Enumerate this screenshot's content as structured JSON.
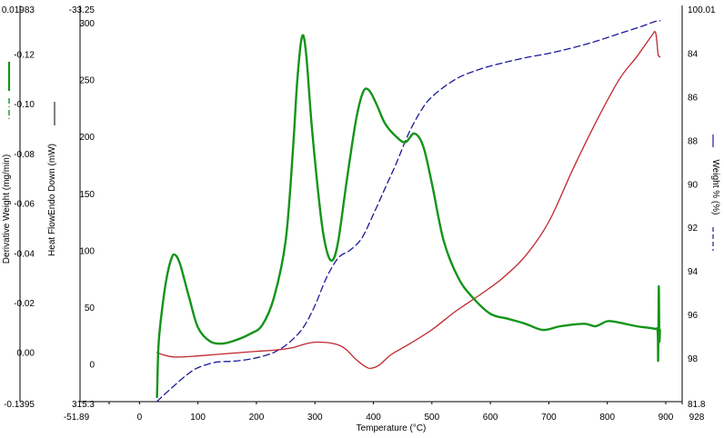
{
  "chart_data": {
    "type": "line",
    "xlabel": "Temperature (°C)",
    "xlim": [
      -51.89,
      928
    ],
    "x_ticks": [
      "-51.89",
      "0",
      "100",
      "200",
      "300",
      "400",
      "500",
      "600",
      "700",
      "800",
      "900",
      "928"
    ],
    "axes": {
      "derivative": {
        "label": "Derivative Weight (mg/min)",
        "ylim": [
          -0.1395,
          0.01983
        ],
        "ticks": [
          "0.01983",
          "0.00",
          "-0.02",
          "-0.04",
          "-0.06",
          "-0.08",
          "-0.10",
          "-0.12",
          "-0.1395"
        ],
        "legend_style": "solid green line with dash-dot marker"
      },
      "heatflow": {
        "label": "Heat FlowEndo Down (mW)",
        "ylim": [
          315.3,
          -33.25
        ],
        "ticks": [
          "-33.25",
          "0",
          "50",
          "100",
          "150",
          "200",
          "250",
          "300",
          "315.3"
        ],
        "legend_style": "solid line"
      },
      "weight": {
        "label": "Weight % (%)",
        "ylim": [
          81.8,
          100.01
        ],
        "ticks": [
          "100.01",
          "98",
          "96",
          "94",
          "92",
          "90",
          "88",
          "86",
          "84",
          "81.8"
        ],
        "legend_style": "dashed blue line"
      }
    },
    "series": [
      {
        "axis": "weight",
        "color": "#1a1a99",
        "style": "dashed",
        "points": [
          [
            30,
            100.0
          ],
          [
            50,
            99.5
          ],
          [
            80,
            98.8
          ],
          [
            100,
            98.45
          ],
          [
            130,
            98.2
          ],
          [
            160,
            98.15
          ],
          [
            190,
            98.05
          ],
          [
            220,
            97.85
          ],
          [
            240,
            97.6
          ],
          [
            260,
            97.2
          ],
          [
            280,
            96.6
          ],
          [
            300,
            95.6
          ],
          [
            320,
            94.3
          ],
          [
            340,
            93.4
          ],
          [
            360,
            93.05
          ],
          [
            380,
            92.5
          ],
          [
            400,
            91.4
          ],
          [
            420,
            90.2
          ],
          [
            440,
            89.0
          ],
          [
            460,
            87.7
          ],
          [
            480,
            86.7
          ],
          [
            500,
            86.0
          ],
          [
            540,
            85.2
          ],
          [
            580,
            84.75
          ],
          [
            620,
            84.45
          ],
          [
            660,
            84.2
          ],
          [
            700,
            84.0
          ],
          [
            740,
            83.75
          ],
          [
            780,
            83.45
          ],
          [
            820,
            83.1
          ],
          [
            860,
            82.75
          ],
          [
            880,
            82.55
          ],
          [
            890,
            82.5
          ]
        ]
      },
      {
        "axis": "heatflow",
        "color": "#c0272d",
        "style": "solid",
        "points": [
          [
            30,
            10
          ],
          [
            40,
            8
          ],
          [
            60,
            6
          ],
          [
            100,
            7
          ],
          [
            150,
            9
          ],
          [
            200,
            11
          ],
          [
            230,
            12
          ],
          [
            260,
            14
          ],
          [
            280,
            17
          ],
          [
            300,
            19
          ],
          [
            330,
            18
          ],
          [
            350,
            14
          ],
          [
            370,
            4
          ],
          [
            385,
            -2
          ],
          [
            395,
            -4
          ],
          [
            410,
            -1
          ],
          [
            430,
            8
          ],
          [
            460,
            17
          ],
          [
            500,
            30
          ],
          [
            540,
            46
          ],
          [
            580,
            60
          ],
          [
            620,
            75
          ],
          [
            660,
            95
          ],
          [
            700,
            125
          ],
          [
            740,
            170
          ],
          [
            780,
            212
          ],
          [
            820,
            250
          ],
          [
            850,
            270
          ],
          [
            875,
            288
          ],
          [
            882,
            292
          ],
          [
            885,
            282
          ],
          [
            887,
            272
          ],
          [
            890,
            270
          ]
        ]
      },
      {
        "axis": "derivative",
        "color": "#139419",
        "style": "solid",
        "points": [
          [
            30,
            0.018
          ],
          [
            32,
            0.0
          ],
          [
            35,
            -0.01
          ],
          [
            45,
            -0.028
          ],
          [
            55,
            -0.038
          ],
          [
            62,
            -0.039
          ],
          [
            70,
            -0.035
          ],
          [
            85,
            -0.022
          ],
          [
            100,
            -0.01
          ],
          [
            120,
            -0.0045
          ],
          [
            140,
            -0.0035
          ],
          [
            160,
            -0.0045
          ],
          [
            190,
            -0.0075
          ],
          [
            210,
            -0.011
          ],
          [
            230,
            -0.022
          ],
          [
            250,
            -0.045
          ],
          [
            262,
            -0.08
          ],
          [
            270,
            -0.11
          ],
          [
            278,
            -0.127
          ],
          [
            285,
            -0.12
          ],
          [
            295,
            -0.09
          ],
          [
            310,
            -0.055
          ],
          [
            320,
            -0.041
          ],
          [
            330,
            -0.037
          ],
          [
            340,
            -0.045
          ],
          [
            355,
            -0.07
          ],
          [
            370,
            -0.093
          ],
          [
            382,
            -0.1045
          ],
          [
            392,
            -0.1055
          ],
          [
            405,
            -0.1
          ],
          [
            420,
            -0.092
          ],
          [
            440,
            -0.0865
          ],
          [
            455,
            -0.0845
          ],
          [
            470,
            -0.088
          ],
          [
            485,
            -0.083
          ],
          [
            500,
            -0.068
          ],
          [
            520,
            -0.045
          ],
          [
            545,
            -0.03
          ],
          [
            570,
            -0.022
          ],
          [
            600,
            -0.0155
          ],
          [
            630,
            -0.0135
          ],
          [
            660,
            -0.0115
          ],
          [
            690,
            -0.009
          ],
          [
            720,
            -0.0105
          ],
          [
            760,
            -0.0115
          ],
          [
            780,
            -0.0105
          ],
          [
            800,
            -0.0125
          ],
          [
            820,
            -0.012
          ],
          [
            850,
            -0.0105
          ],
          [
            880,
            -0.0095
          ],
          [
            886,
            -0.0085
          ],
          [
            887,
            0.003
          ],
          [
            888,
            -0.0265
          ],
          [
            889,
            -0.005
          ],
          [
            890,
            -0.009
          ]
        ]
      }
    ]
  }
}
